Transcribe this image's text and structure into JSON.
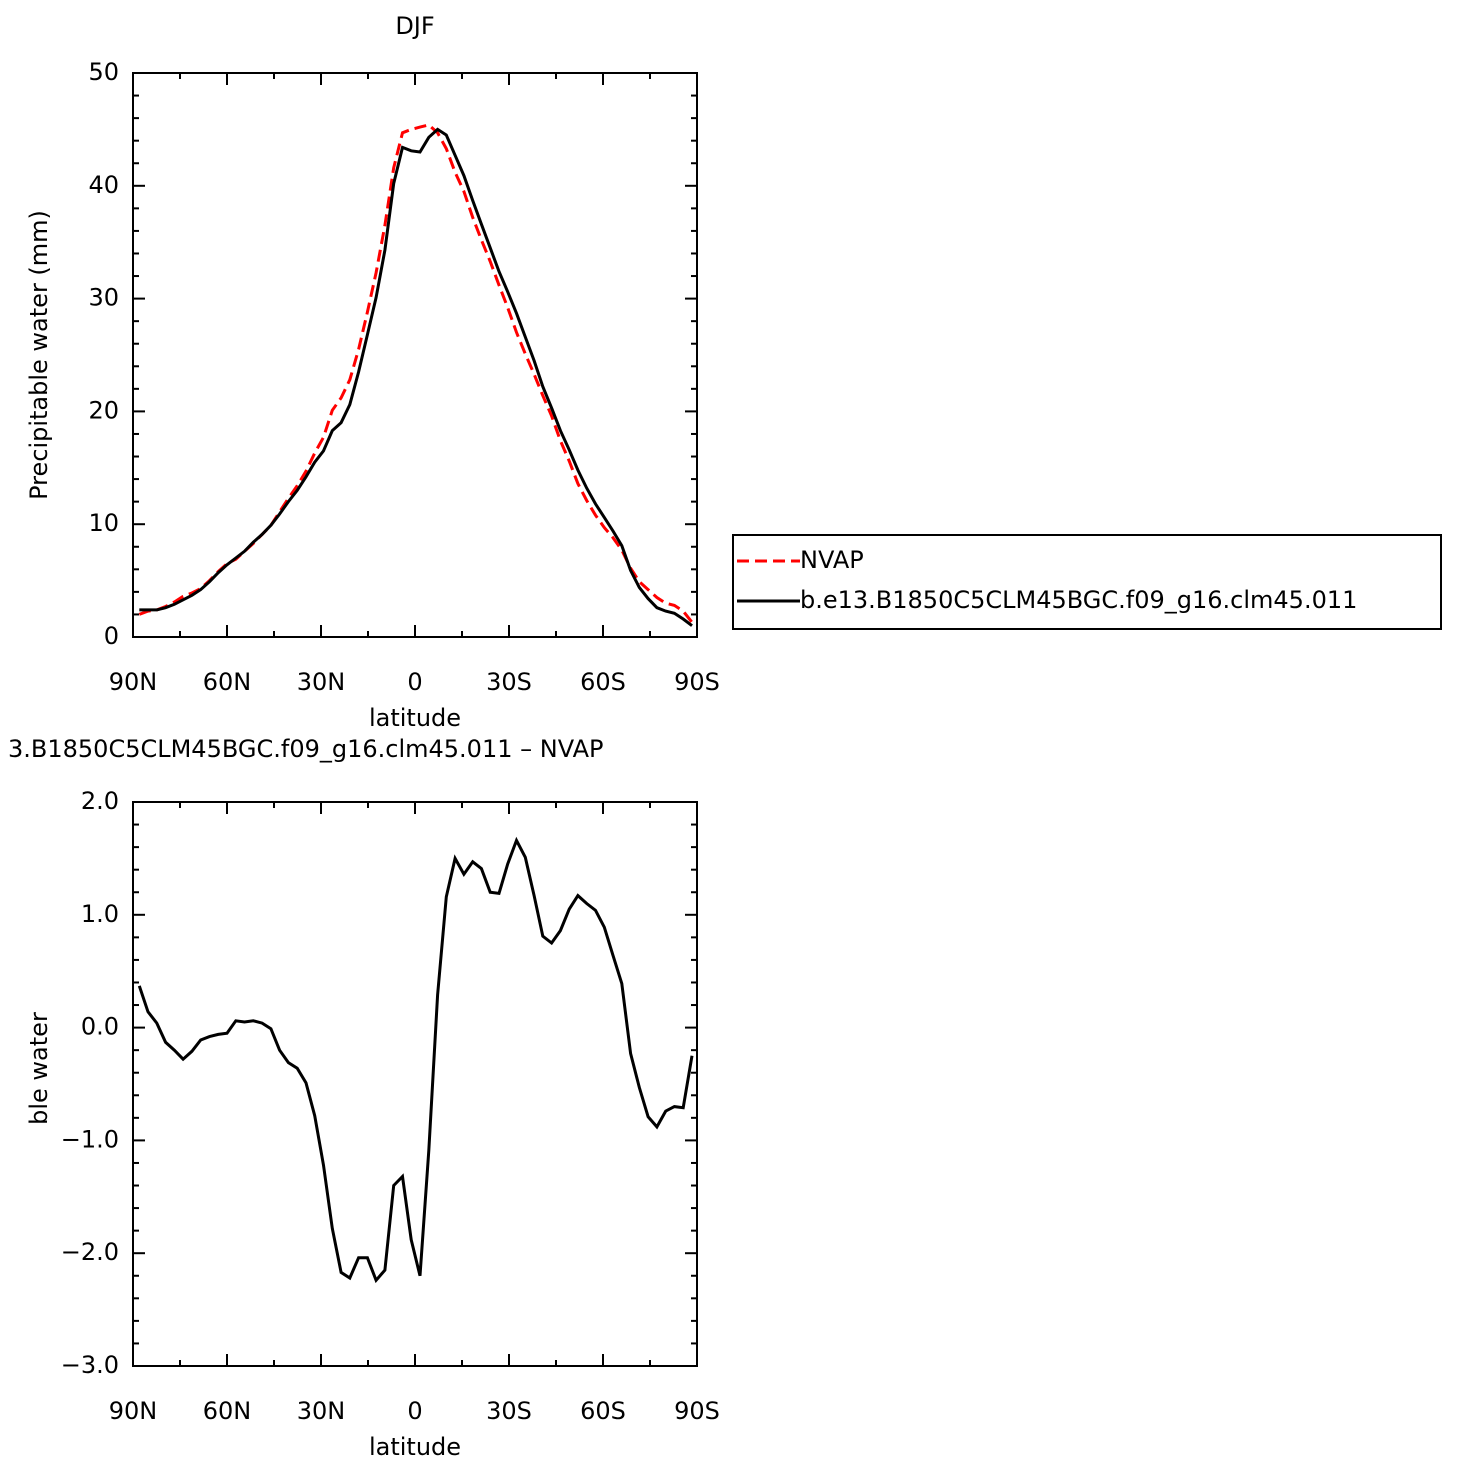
{
  "chart_data": [
    {
      "type": "line",
      "title": "DJF",
      "xlabel": "latitude",
      "ylabel": "Precipitable water (mm)",
      "x": [
        88,
        85.2,
        82.4,
        79.6,
        76.8,
        74,
        71.2,
        68.4,
        65.6,
        62.8,
        60,
        57.2,
        54.4,
        51.6,
        48.8,
        46,
        43.2,
        40.4,
        37.6,
        34.8,
        32,
        29.2,
        26.4,
        23.6,
        20.8,
        18,
        15.2,
        12.4,
        9.6,
        6.8,
        4,
        1.2,
        -1.6,
        -4.4,
        -7.2,
        -10,
        -12.8,
        -15.6,
        -18.4,
        -21.2,
        -24,
        -26.8,
        -29.6,
        -32.4,
        -35.2,
        -38,
        -40.8,
        -43.6,
        -46.4,
        -49.2,
        -52,
        -54.8,
        -57.6,
        -60.4,
        -63.2,
        -66,
        -68.8,
        -71.6,
        -74.4,
        -77.2,
        -80,
        -82.8,
        -85.6,
        -88.4
      ],
      "xlim": [
        90,
        -90
      ],
      "xticks": [
        {
          "value": 90,
          "label": "90N"
        },
        {
          "value": 60,
          "label": "60N"
        },
        {
          "value": 30,
          "label": "30N"
        },
        0,
        {
          "value": -30,
          "label": "30S"
        },
        {
          "value": -60,
          "label": "60S"
        },
        {
          "value": -90,
          "label": "90S"
        }
      ],
      "ylim": [
        0,
        50
      ],
      "yticks": [
        0,
        10,
        20,
        30,
        40,
        50
      ],
      "legend": "right",
      "series": [
        {
          "name": "NVAP",
          "color": "#ff0000",
          "dashed": true,
          "values": [
            2.0,
            2.3,
            2.4,
            2.7,
            3.1,
            3.6,
            3.9,
            4.3,
            5.0,
            5.8,
            6.5,
            6.9,
            7.6,
            8.3,
            9.1,
            9.9,
            11.1,
            12.3,
            13.4,
            14.7,
            16.3,
            17.7,
            20.1,
            21.2,
            22.8,
            25.5,
            28.8,
            32.3,
            36.5,
            41.6,
            44.7,
            45.0,
            45.2,
            45.4,
            44.7,
            43.3,
            41.2,
            39.5,
            37.2,
            35.2,
            33.3,
            31.2,
            29.2,
            27.0,
            25.1,
            23.3,
            21.4,
            19.6,
            17.4,
            15.6,
            13.6,
            12.1,
            10.8,
            9.7,
            8.8,
            7.7,
            6.1,
            4.9,
            4.2,
            3.5,
            3.0,
            2.8,
            2.3,
            1.3
          ]
        },
        {
          "name": "b.e13.B1850C5CLM45BGC.f09_g16.clm45.011",
          "color": "#000000",
          "dashed": false,
          "values": [
            2.4,
            2.4,
            2.4,
            2.6,
            2.9,
            3.3,
            3.7,
            4.2,
            4.9,
            5.7,
            6.4,
            7.0,
            7.6,
            8.4,
            9.1,
            9.9,
            10.9,
            12.0,
            13.0,
            14.2,
            15.5,
            16.5,
            18.3,
            19.0,
            20.6,
            23.5,
            26.8,
            30.1,
            34.3,
            40.2,
            43.4,
            43.1,
            43.0,
            44.3,
            45.0,
            44.5,
            42.7,
            40.9,
            38.7,
            36.6,
            34.5,
            32.4,
            30.6,
            28.7,
            26.6,
            24.5,
            22.2,
            20.3,
            18.3,
            16.6,
            14.8,
            13.2,
            11.8,
            10.6,
            9.4,
            8.1,
            5.9,
            4.4,
            3.4,
            2.6,
            2.3,
            2.1,
            1.6,
            1.0
          ]
        }
      ]
    },
    {
      "type": "line",
      "title": "3.B1850C5CLM45BGC.f09_g16.clm45.011 – NVAP",
      "xlabel": "latitude",
      "ylabel": "Precipitable water (mm)",
      "x": [
        88,
        85.2,
        82.4,
        79.6,
        76.8,
        74,
        71.2,
        68.4,
        65.6,
        62.8,
        60,
        57.2,
        54.4,
        51.6,
        48.8,
        46,
        43.2,
        40.4,
        37.6,
        34.8,
        32,
        29.2,
        26.4,
        23.6,
        20.8,
        18,
        15.2,
        12.4,
        9.6,
        6.8,
        4,
        1.2,
        -1.6,
        -4.4,
        -7.2,
        -10,
        -12.8,
        -15.6,
        -18.4,
        -21.2,
        -24,
        -26.8,
        -29.6,
        -32.4,
        -35.2,
        -38,
        -40.8,
        -43.6,
        -46.4,
        -49.2,
        -52,
        -54.8,
        -57.6,
        -60.4,
        -63.2,
        -66,
        -68.8,
        -71.6,
        -74.4,
        -77.2,
        -80,
        -82.8,
        -85.6,
        -88.4
      ],
      "xlim": [
        90,
        -90
      ],
      "xticks": [
        {
          "value": 90,
          "label": "90N"
        },
        {
          "value": 60,
          "label": "60N"
        },
        {
          "value": 30,
          "label": "30N"
        },
        0,
        {
          "value": -30,
          "label": "30S"
        },
        {
          "value": -60,
          "label": "60S"
        },
        {
          "value": -90,
          "label": "90S"
        }
      ],
      "ylim": [
        -3,
        2
      ],
      "yticks": [
        {
          "value": 2,
          "label": "2.0"
        },
        {
          "value": 1,
          "label": "1.0"
        },
        {
          "value": 0,
          "label": "0.0"
        },
        {
          "value": -1,
          "label": "−1.0"
        },
        {
          "value": -2,
          "label": "−2.0"
        },
        {
          "value": -3,
          "label": "−3.0"
        }
      ],
      "series": [
        {
          "color": "#000000",
          "dashed": false,
          "values": [
            0.37,
            0.14,
            0.04,
            -0.13,
            -0.2,
            -0.28,
            -0.21,
            -0.11,
            -0.08,
            -0.06,
            -0.05,
            0.06,
            0.05,
            0.06,
            0.04,
            -0.01,
            -0.2,
            -0.31,
            -0.36,
            -0.49,
            -0.78,
            -1.22,
            -1.78,
            -2.17,
            -2.22,
            -2.04,
            -2.04,
            -2.24,
            -2.15,
            -1.4,
            -1.32,
            -1.88,
            -2.2,
            -1.09,
            0.29,
            1.16,
            1.5,
            1.36,
            1.47,
            1.41,
            1.2,
            1.19,
            1.45,
            1.66,
            1.51,
            1.17,
            0.81,
            0.75,
            0.86,
            1.05,
            1.17,
            1.1,
            1.04,
            0.89,
            0.64,
            0.39,
            -0.23,
            -0.53,
            -0.79,
            -0.88,
            -0.74,
            -0.7,
            -0.71,
            -0.25
          ]
        }
      ]
    }
  ]
}
